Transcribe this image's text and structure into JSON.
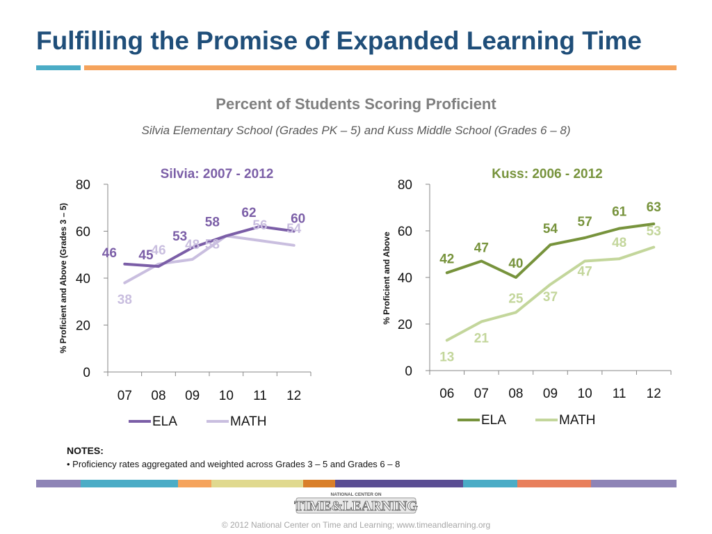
{
  "slide": {
    "title": "Fulfilling the Promise of Expanded Learning Time",
    "chart_heading": "Percent of Students Scoring Proficient",
    "chart_subheading": "Silvia Elementary School (Grades PK – 5) and Kuss Middle School (Grades 6 – 8)",
    "notes_title": "NOTES:",
    "notes_item": "• Proficiency rates aggregated and weighted across Grades 3 – 5 and Grades 6 – 8",
    "footer": "© 2012 National Center on Time and Learning; www.timeandlearning.org",
    "logo": {
      "top_text": "NATIONAL CENTER ON",
      "main_text": "TIME&LEARNING"
    },
    "color_bar": [
      "#8e84b6",
      "#4bacc6",
      "#4bacc6",
      "#f5a35c",
      "#e0d98f",
      "#d97f2a",
      "#5a4d93",
      "#4bacc6",
      "#e87f5c",
      "#8e84b6"
    ]
  },
  "chart_data": [
    {
      "type": "line",
      "title": "Silvia: 2007 - 2012",
      "title_color": "#7b5ea7",
      "ylabel": "% Proficient and Above (Grades 3 – 5)",
      "categories": [
        "07",
        "08",
        "09",
        "10",
        "11",
        "12"
      ],
      "ylim": [
        0,
        80
      ],
      "yticks": [
        0,
        20,
        40,
        60,
        80
      ],
      "legend_position": "bottom",
      "series": [
        {
          "name": "ELA",
          "color": "#7b5ea7",
          "values": [
            46,
            45,
            53,
            58,
            62,
            60
          ],
          "labels": [
            "46",
            "45",
            "53",
            "58",
            "62",
            "60"
          ]
        },
        {
          "name": "MATH",
          "color": "#c9bedf",
          "values": [
            38,
            46,
            48,
            58,
            56,
            54
          ],
          "labels": [
            "38",
            "46",
            "48",
            "58",
            "56",
            "54"
          ]
        }
      ]
    },
    {
      "type": "line",
      "title": "Kuss: 2006 - 2012",
      "title_color": "#77933c",
      "ylabel": "% Proficient and Above",
      "categories": [
        "06",
        "07",
        "08",
        "09",
        "10",
        "11",
        "12"
      ],
      "ylim": [
        0,
        80
      ],
      "yticks": [
        0,
        20,
        40,
        60,
        80
      ],
      "legend_position": "bottom",
      "series": [
        {
          "name": "ELA",
          "color": "#77933c",
          "values": [
            42,
            47,
            40,
            54,
            57,
            61,
            63
          ],
          "labels": [
            "42",
            "47",
            "40",
            "54",
            "57",
            "61",
            "63"
          ]
        },
        {
          "name": "MATH",
          "color": "#c3d69b",
          "values": [
            13,
            21,
            25,
            37,
            47,
            48,
            53
          ],
          "labels": [
            "13",
            "21",
            "25",
            "37",
            "47",
            "48",
            "53"
          ]
        }
      ]
    }
  ]
}
